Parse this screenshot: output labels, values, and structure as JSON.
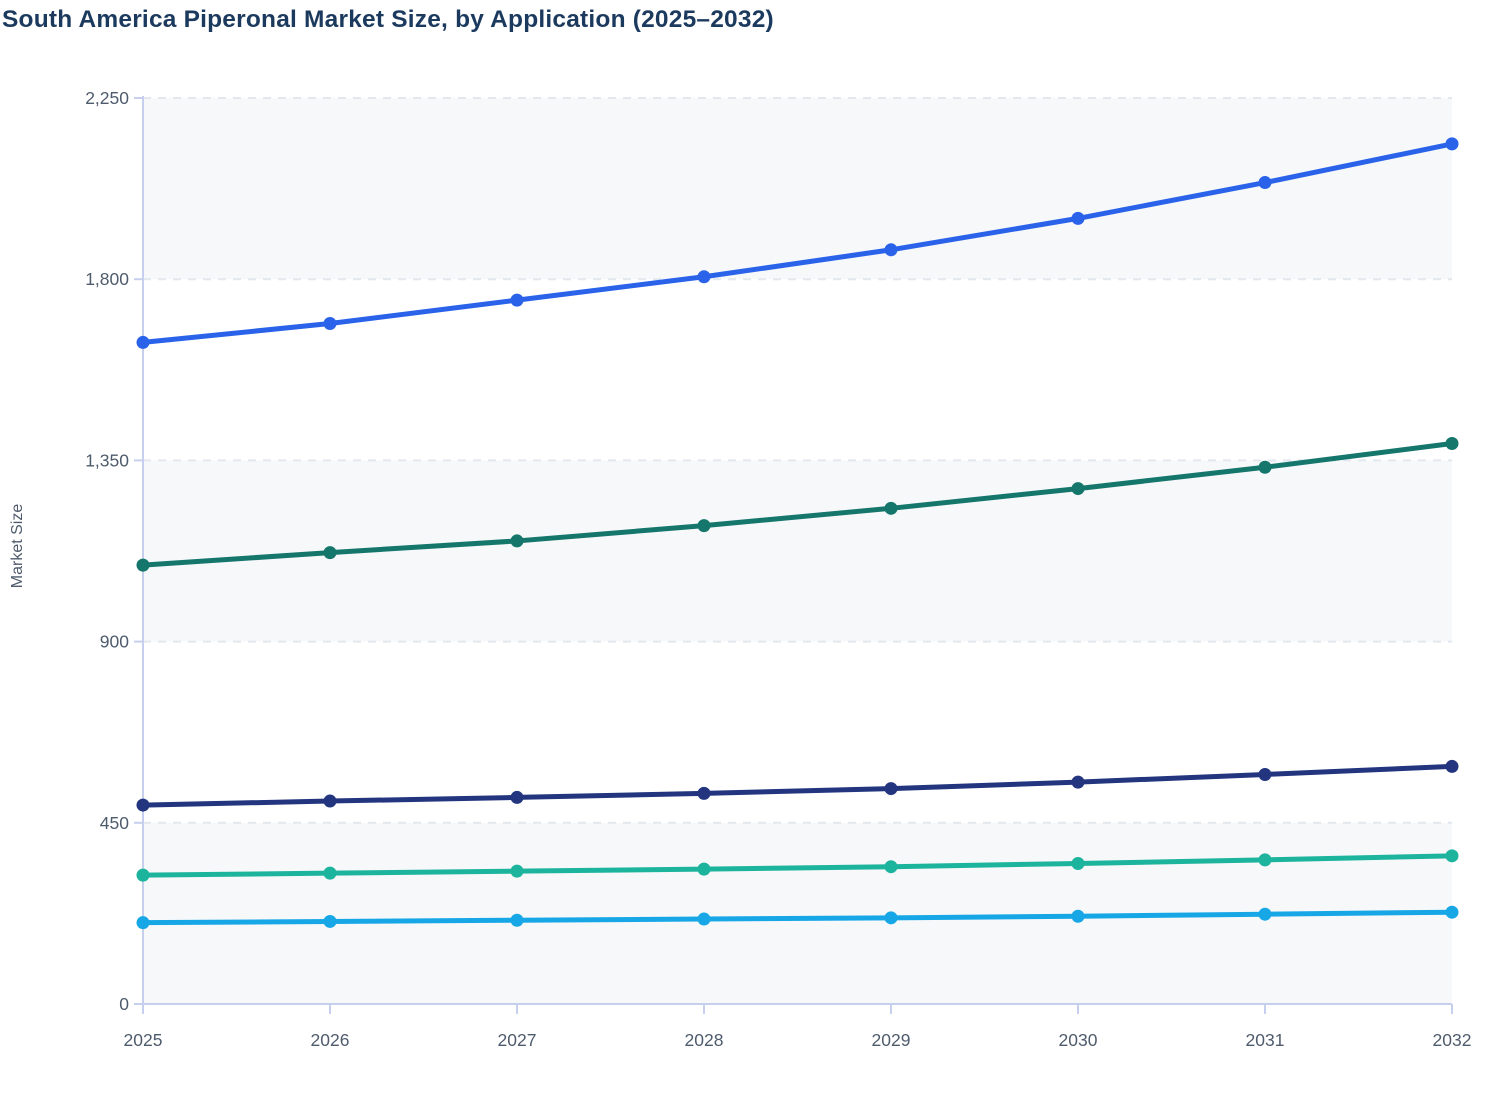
{
  "title": "South America Piperonal Market Size, by Application (2025–2032)",
  "chart_data": {
    "type": "line",
    "title": "South America Piperonal Market Size, by Application (2025–2032)",
    "xlabel": "",
    "ylabel": "Market Size",
    "x": [
      2025,
      2026,
      2027,
      2028,
      2029,
      2030,
      2031,
      2032
    ],
    "x_tick_labels": [
      "2025",
      "2026",
      "2027",
      "2028",
      "2029",
      "2030",
      "2031",
      "2032"
    ],
    "ylim": [
      0,
      2250
    ],
    "y_ticks": [
      0,
      450,
      900,
      1350,
      1800,
      2250
    ],
    "y_tick_labels": [
      "0",
      "450",
      "900",
      "1,350",
      "1,800",
      "2,250"
    ],
    "grid": "horizontal-dashed",
    "legend": "none",
    "series": [
      {
        "name": "series-1-blue",
        "color": "#2a63e9",
        "values": [
          1643,
          1690,
          1748,
          1806,
          1873,
          1951,
          2040,
          2136
        ]
      },
      {
        "name": "series-2-teal",
        "color": "#15766c",
        "values": [
          1090,
          1121,
          1150,
          1188,
          1231,
          1280,
          1333,
          1392
        ]
      },
      {
        "name": "series-3-navy",
        "color": "#22357e",
        "values": [
          494,
          504,
          513,
          523,
          535,
          551,
          570,
          590
        ]
      },
      {
        "name": "series-4-mint",
        "color": "#1db49d",
        "values": [
          320,
          325,
          330,
          335,
          341,
          349,
          358,
          368
        ]
      },
      {
        "name": "series-5-cyan",
        "color": "#17a7e6",
        "values": [
          202,
          205,
          208,
          211,
          214,
          218,
          223,
          228
        ]
      }
    ]
  },
  "colors": {
    "title": "#1c3a5e",
    "axis": "#c6cfee",
    "gridline": "#e3e8ee",
    "band": "#f6f8fa",
    "tick_label": "#4e5b6c"
  }
}
